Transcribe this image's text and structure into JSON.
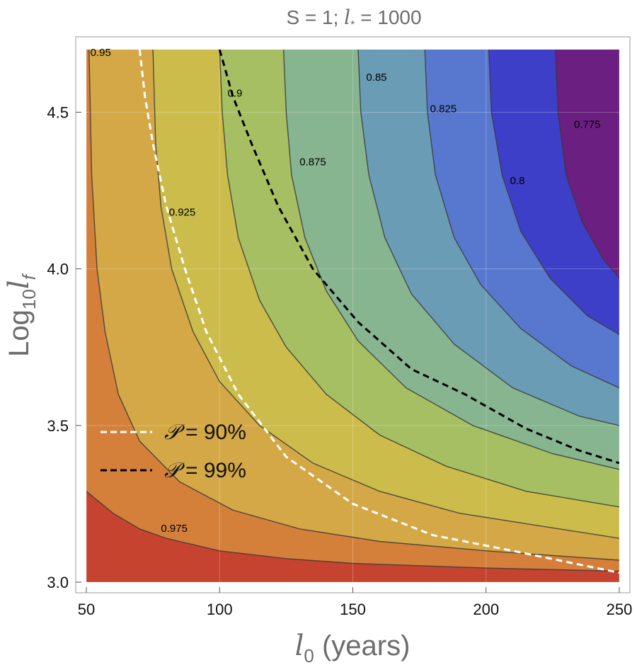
{
  "chart_data": {
    "type": "contour",
    "title": "S = 1;  l* = 1000",
    "title_parts": {
      "prefix": "S = 1;  ",
      "symbol": "l",
      "subscript": "*",
      "suffix": " = 1000"
    },
    "xlabel": {
      "symbol": "l",
      "subscript": "0",
      "text": " (years)"
    },
    "ylabel": {
      "prefix": "Log",
      "subscript": "10",
      "symbol": "l",
      "symbol_subscript": "f"
    },
    "xlim": [
      50,
      250
    ],
    "ylim": [
      3.0,
      4.7
    ],
    "xticks": [
      50,
      100,
      150,
      200,
      250
    ],
    "xtick_labels": [
      "50",
      "100",
      "150",
      "200",
      "250"
    ],
    "yticks": [
      3.0,
      3.5,
      4.0,
      4.5
    ],
    "ytick_labels": [
      "3.0",
      "3.5",
      "4.0",
      "4.5"
    ],
    "grid": true,
    "levels": [
      0.775,
      0.8,
      0.825,
      0.85,
      0.875,
      0.9,
      0.925,
      0.95,
      0.975
    ],
    "level_labels": [
      "0.775",
      "0.8",
      "0.825",
      "0.85",
      "0.875",
      "0.9",
      "0.925",
      "0.95",
      "0.975"
    ],
    "band_colors": [
      "#6b1f80",
      "#3d3fc8",
      "#5878cf",
      "#6a9cb6",
      "#86b58f",
      "#a6bf62",
      "#ccbc4b",
      "#d4a846",
      "#d4803b",
      "#c5432f"
    ],
    "contours": [
      {
        "level": "0.975",
        "points": [
          [
            50,
            3.29
          ],
          [
            60,
            3.22
          ],
          [
            70,
            3.17
          ],
          [
            80,
            3.14
          ],
          [
            100,
            3.1
          ],
          [
            125,
            3.075
          ],
          [
            150,
            3.06
          ],
          [
            200,
            3.045
          ],
          [
            250,
            3.035
          ]
        ]
      },
      {
        "level": "0.95",
        "points": [
          [
            51,
            4.7
          ],
          [
            52,
            4.3
          ],
          [
            54,
            4.0
          ],
          [
            57,
            3.8
          ],
          [
            62,
            3.6
          ],
          [
            70,
            3.45
          ],
          [
            85,
            3.32
          ],
          [
            105,
            3.23
          ],
          [
            130,
            3.17
          ],
          [
            160,
            3.13
          ],
          [
            200,
            3.1
          ],
          [
            250,
            3.07
          ]
        ]
      },
      {
        "level": "0.925",
        "points": [
          [
            75,
            4.7
          ],
          [
            76,
            4.4
          ],
          [
            78,
            4.2
          ],
          [
            82,
            4.0
          ],
          [
            90,
            3.8
          ],
          [
            100,
            3.64
          ],
          [
            115,
            3.5
          ],
          [
            135,
            3.38
          ],
          [
            160,
            3.29
          ],
          [
            190,
            3.22
          ],
          [
            220,
            3.18
          ],
          [
            250,
            3.14
          ]
        ]
      },
      {
        "level": "0.9",
        "points": [
          [
            100,
            4.7
          ],
          [
            101,
            4.5
          ],
          [
            103,
            4.3
          ],
          [
            107,
            4.1
          ],
          [
            115,
            3.9
          ],
          [
            125,
            3.75
          ],
          [
            140,
            3.6
          ],
          [
            160,
            3.47
          ],
          [
            185,
            3.37
          ],
          [
            215,
            3.29
          ],
          [
            250,
            3.24
          ]
        ]
      },
      {
        "level": "0.875",
        "points": [
          [
            124,
            4.7
          ],
          [
            125,
            4.5
          ],
          [
            127,
            4.3
          ],
          [
            132,
            4.1
          ],
          [
            140,
            3.93
          ],
          [
            152,
            3.77
          ],
          [
            170,
            3.62
          ],
          [
            195,
            3.5
          ],
          [
            225,
            3.41
          ],
          [
            250,
            3.36
          ]
        ]
      },
      {
        "level": "0.85",
        "points": [
          [
            152,
            4.7
          ],
          [
            153,
            4.5
          ],
          [
            156,
            4.3
          ],
          [
            162,
            4.1
          ],
          [
            172,
            3.92
          ],
          [
            188,
            3.76
          ],
          [
            210,
            3.62
          ],
          [
            235,
            3.53
          ],
          [
            250,
            3.5
          ]
        ]
      },
      {
        "level": "0.825",
        "points": [
          [
            177,
            4.7
          ],
          [
            178,
            4.5
          ],
          [
            181,
            4.3
          ],
          [
            188,
            4.1
          ],
          [
            198,
            3.95
          ],
          [
            213,
            3.81
          ],
          [
            232,
            3.69
          ],
          [
            250,
            3.62
          ]
        ]
      },
      {
        "level": "0.8",
        "points": [
          [
            201,
            4.7
          ],
          [
            202,
            4.5
          ],
          [
            206,
            4.3
          ],
          [
            213,
            4.12
          ],
          [
            224,
            3.97
          ],
          [
            238,
            3.85
          ],
          [
            250,
            3.79
          ]
        ]
      },
      {
        "level": "0.775",
        "points": [
          [
            226,
            4.7
          ],
          [
            227,
            4.5
          ],
          [
            230,
            4.3
          ],
          [
            236,
            4.15
          ],
          [
            244,
            4.03
          ],
          [
            250,
            3.97
          ]
        ]
      }
    ],
    "contour_label_positions": [
      {
        "level": "0.95",
        "x": 51.5,
        "y": 4.68
      },
      {
        "level": "0.925",
        "x": 81,
        "y": 4.17
      },
      {
        "level": "0.9",
        "x": 103,
        "y": 4.55
      },
      {
        "level": "0.875",
        "x": 130,
        "y": 4.33
      },
      {
        "level": "0.85",
        "x": 155,
        "y": 4.6
      },
      {
        "level": "0.825",
        "x": 179,
        "y": 4.5
      },
      {
        "level": "0.8",
        "x": 209,
        "y": 4.27
      },
      {
        "level": "0.775",
        "x": 233,
        "y": 4.45
      },
      {
        "level": "0.975",
        "x": 78,
        "y": 3.16
      }
    ],
    "series": [
      {
        "name": "𝒫 = 90%",
        "style": "dashed",
        "color": "#ffffff",
        "points": [
          [
            70,
            4.7
          ],
          [
            72,
            4.55
          ],
          [
            75,
            4.4
          ],
          [
            80,
            4.2
          ],
          [
            87,
            4.0
          ],
          [
            95,
            3.8
          ],
          [
            107,
            3.6
          ],
          [
            125,
            3.4
          ],
          [
            150,
            3.25
          ],
          [
            180,
            3.15
          ],
          [
            210,
            3.1
          ],
          [
            250,
            3.03
          ]
        ]
      },
      {
        "name": "𝒫 = 99%",
        "style": "dashed",
        "color": "#000000",
        "points": [
          [
            100,
            4.7
          ],
          [
            105,
            4.55
          ],
          [
            112,
            4.4
          ],
          [
            122,
            4.2
          ],
          [
            135,
            4.0
          ],
          [
            152,
            3.83
          ],
          [
            172,
            3.68
          ],
          [
            192,
            3.6
          ],
          [
            215,
            3.49
          ],
          [
            235,
            3.42
          ],
          [
            250,
            3.38
          ]
        ]
      }
    ],
    "legend": {
      "placement": "lower-left",
      "entries": [
        {
          "prefix": "𝒫",
          "text": " = 90%",
          "color": "#ffffff"
        },
        {
          "prefix": "𝒫",
          "text": " = 99%",
          "color": "#000000"
        }
      ]
    }
  }
}
